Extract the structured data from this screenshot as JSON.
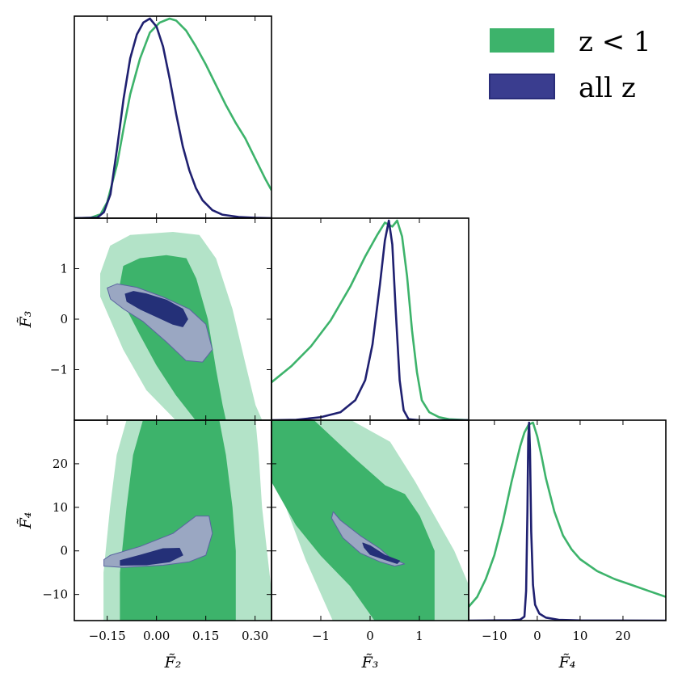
{
  "colors": {
    "green": "#3db36b",
    "green_light": "#b3e3c8",
    "navy": "#1f2070",
    "navy_fill": "#243078",
    "navy_light": "#9aa7c2",
    "axes": "#000000"
  },
  "legend": {
    "placement": "top-right",
    "items": [
      {
        "label": "z < 1",
        "color": "#3db36b"
      },
      {
        "label": "all z",
        "color": "#3a3d8f"
      }
    ]
  },
  "chart_data": {
    "type": "corner-plot",
    "parameters": [
      {
        "id": "F2",
        "label": "F̃₂",
        "range": [
          -0.25,
          0.35
        ],
        "ticks": [
          -0.15,
          0.0,
          0.15,
          0.3
        ],
        "tick_labels": [
          "−0.15",
          "0.00",
          "0.15",
          "0.30"
        ]
      },
      {
        "id": "F3",
        "label": "F̃₃",
        "range": [
          -2.0,
          2.0
        ],
        "ticks": [
          -1,
          0,
          1
        ],
        "tick_labels": [
          "−1",
          "0",
          "1"
        ]
      },
      {
        "id": "F4",
        "label": "F̃₄",
        "range": [
          -16,
          30
        ],
        "ticks": [
          -10,
          0,
          10,
          20
        ],
        "tick_labels": [
          "−10",
          "0",
          "10",
          "20"
        ]
      }
    ],
    "y_tick_labels": {
      "F3": [
        "1",
        "0",
        "−1"
      ],
      "F4": [
        "20",
        "10",
        "0",
        "−10"
      ]
    },
    "marginals": {
      "F2": {
        "green": [
          [
            -0.25,
            0
          ],
          [
            -0.2,
            0.002
          ],
          [
            -0.17,
            0.02
          ],
          [
            -0.15,
            0.08
          ],
          [
            -0.12,
            0.27
          ],
          [
            -0.1,
            0.45
          ],
          [
            -0.08,
            0.62
          ],
          [
            -0.05,
            0.8
          ],
          [
            -0.02,
            0.93
          ],
          [
            0.01,
            0.98
          ],
          [
            0.04,
            1.0
          ],
          [
            0.06,
            0.99
          ],
          [
            0.09,
            0.94
          ],
          [
            0.12,
            0.86
          ],
          [
            0.15,
            0.77
          ],
          [
            0.18,
            0.67
          ],
          [
            0.21,
            0.57
          ],
          [
            0.24,
            0.48
          ],
          [
            0.27,
            0.4
          ],
          [
            0.3,
            0.3
          ],
          [
            0.33,
            0.2
          ],
          [
            0.35,
            0.14
          ]
        ],
        "navy": [
          [
            -0.25,
            0
          ],
          [
            -0.18,
            0.003
          ],
          [
            -0.16,
            0.03
          ],
          [
            -0.14,
            0.12
          ],
          [
            -0.12,
            0.35
          ],
          [
            -0.1,
            0.6
          ],
          [
            -0.08,
            0.8
          ],
          [
            -0.06,
            0.92
          ],
          [
            -0.04,
            0.98
          ],
          [
            -0.02,
            1.0
          ],
          [
            0.0,
            0.96
          ],
          [
            0.02,
            0.86
          ],
          [
            0.04,
            0.7
          ],
          [
            0.06,
            0.52
          ],
          [
            0.08,
            0.36
          ],
          [
            0.1,
            0.24
          ],
          [
            0.12,
            0.15
          ],
          [
            0.14,
            0.09
          ],
          [
            0.17,
            0.04
          ],
          [
            0.2,
            0.018
          ],
          [
            0.25,
            0.006
          ],
          [
            0.3,
            0.002
          ],
          [
            0.35,
            0
          ]
        ]
      },
      "F3": {
        "green": [
          [
            -2.0,
            0.19
          ],
          [
            -1.6,
            0.27
          ],
          [
            -1.2,
            0.37
          ],
          [
            -0.8,
            0.5
          ],
          [
            -0.4,
            0.67
          ],
          [
            -0.1,
            0.82
          ],
          [
            0.15,
            0.93
          ],
          [
            0.3,
            0.99
          ],
          [
            0.45,
            0.97
          ],
          [
            0.55,
            1.0
          ],
          [
            0.65,
            0.92
          ],
          [
            0.75,
            0.72
          ],
          [
            0.85,
            0.45
          ],
          [
            0.95,
            0.24
          ],
          [
            1.05,
            0.1
          ],
          [
            1.2,
            0.04
          ],
          [
            1.4,
            0.015
          ],
          [
            1.6,
            0.005
          ],
          [
            2.0,
            0
          ]
        ],
        "navy": [
          [
            -2.0,
            0
          ],
          [
            -1.5,
            0.002
          ],
          [
            -1.0,
            0.015
          ],
          [
            -0.6,
            0.04
          ],
          [
            -0.3,
            0.1
          ],
          [
            -0.1,
            0.2
          ],
          [
            0.05,
            0.38
          ],
          [
            0.2,
            0.68
          ],
          [
            0.3,
            0.9
          ],
          [
            0.38,
            1.0
          ],
          [
            0.45,
            0.88
          ],
          [
            0.52,
            0.55
          ],
          [
            0.6,
            0.2
          ],
          [
            0.68,
            0.05
          ],
          [
            0.78,
            0.005
          ],
          [
            1.0,
            0
          ],
          [
            2.0,
            0
          ]
        ]
      },
      "F4": {
        "green": [
          [
            -16,
            0.07
          ],
          [
            -14,
            0.12
          ],
          [
            -12,
            0.21
          ],
          [
            -10,
            0.33
          ],
          [
            -8,
            0.5
          ],
          [
            -6,
            0.7
          ],
          [
            -4,
            0.88
          ],
          [
            -3,
            0.95
          ],
          [
            -2,
            0.99
          ],
          [
            -1,
            1.0
          ],
          [
            0,
            0.93
          ],
          [
            1,
            0.83
          ],
          [
            2,
            0.72
          ],
          [
            4,
            0.55
          ],
          [
            6,
            0.43
          ],
          [
            8,
            0.36
          ],
          [
            10,
            0.31
          ],
          [
            14,
            0.25
          ],
          [
            18,
            0.21
          ],
          [
            22,
            0.18
          ],
          [
            26,
            0.15
          ],
          [
            30,
            0.12
          ]
        ],
        "navy": [
          [
            -16,
            0
          ],
          [
            -6,
            0.002
          ],
          [
            -4,
            0.005
          ],
          [
            -3,
            0.02
          ],
          [
            -2.6,
            0.15
          ],
          [
            -2.3,
            0.55
          ],
          [
            -2.1,
            0.92
          ],
          [
            -1.9,
            1.0
          ],
          [
            -1.7,
            0.86
          ],
          [
            -1.4,
            0.45
          ],
          [
            -1.0,
            0.18
          ],
          [
            -0.5,
            0.08
          ],
          [
            0.5,
            0.035
          ],
          [
            2,
            0.015
          ],
          [
            5,
            0.004
          ],
          [
            10,
            0.001
          ],
          [
            30,
            0
          ]
        ]
      }
    },
    "contours": {
      "F2_F3": {
        "green_outer": [
          [
            -0.17,
            0.9
          ],
          [
            -0.14,
            1.45
          ],
          [
            -0.08,
            1.66
          ],
          [
            0.05,
            1.72
          ],
          [
            0.13,
            1.66
          ],
          [
            0.18,
            1.2
          ],
          [
            0.23,
            0.2
          ],
          [
            0.27,
            -0.9
          ],
          [
            0.3,
            -1.7
          ],
          [
            0.32,
            -2.0
          ],
          [
            0.06,
            -2.0
          ],
          [
            -0.03,
            -1.4
          ],
          [
            -0.1,
            -0.6
          ],
          [
            -0.14,
            0.0
          ],
          [
            -0.17,
            0.45
          ]
        ],
        "green_inner": [
          [
            -0.11,
            0.7
          ],
          [
            -0.1,
            1.05
          ],
          [
            -0.05,
            1.2
          ],
          [
            0.03,
            1.26
          ],
          [
            0.09,
            1.2
          ],
          [
            0.12,
            0.8
          ],
          [
            0.155,
            0.0
          ],
          [
            0.18,
            -1.0
          ],
          [
            0.2,
            -1.7
          ],
          [
            0.21,
            -2.0
          ],
          [
            0.12,
            -2.0
          ],
          [
            0.06,
            -1.5
          ],
          [
            0.0,
            -0.9
          ],
          [
            -0.05,
            -0.3
          ],
          [
            -0.09,
            0.2
          ]
        ],
        "navy_outer": [
          [
            -0.15,
            0.62
          ],
          [
            -0.12,
            0.7
          ],
          [
            -0.06,
            0.63
          ],
          [
            0.02,
            0.44
          ],
          [
            0.1,
            0.2
          ],
          [
            0.15,
            -0.1
          ],
          [
            0.17,
            -0.6
          ],
          [
            0.14,
            -0.85
          ],
          [
            0.09,
            -0.82
          ],
          [
            0.03,
            -0.45
          ],
          [
            -0.04,
            -0.05
          ],
          [
            -0.1,
            0.2
          ],
          [
            -0.14,
            0.4
          ]
        ],
        "navy_inner": [
          [
            -0.095,
            0.5
          ],
          [
            -0.07,
            0.55
          ],
          [
            -0.03,
            0.5
          ],
          [
            0.03,
            0.38
          ],
          [
            0.08,
            0.2
          ],
          [
            0.095,
            0.0
          ],
          [
            0.08,
            -0.15
          ],
          [
            0.05,
            -0.1
          ],
          [
            0.0,
            0.05
          ],
          [
            -0.05,
            0.2
          ],
          [
            -0.09,
            0.35
          ]
        ]
      },
      "F2_F4": {
        "green_outer": [
          [
            -0.16,
            -16
          ],
          [
            -0.16,
            -5
          ],
          [
            -0.14,
            10
          ],
          [
            -0.12,
            22
          ],
          [
            -0.09,
            30
          ],
          [
            0.3,
            30
          ],
          [
            0.31,
            22
          ],
          [
            0.32,
            10
          ],
          [
            0.335,
            0
          ],
          [
            0.35,
            -10
          ],
          [
            0.35,
            -16
          ]
        ],
        "green_inner": [
          [
            -0.11,
            -16
          ],
          [
            -0.11,
            -5
          ],
          [
            -0.09,
            10
          ],
          [
            -0.07,
            22
          ],
          [
            -0.04,
            30
          ],
          [
            0.19,
            30
          ],
          [
            0.21,
            22
          ],
          [
            0.23,
            10
          ],
          [
            0.24,
            0
          ],
          [
            0.24,
            -10
          ],
          [
            0.24,
            -16
          ]
        ],
        "navy_outer": [
          [
            -0.16,
            -2
          ],
          [
            -0.14,
            -1
          ],
          [
            -0.05,
            1
          ],
          [
            0.05,
            4
          ],
          [
            0.12,
            8
          ],
          [
            0.16,
            8
          ],
          [
            0.17,
            4
          ],
          [
            0.15,
            -1
          ],
          [
            0.1,
            -2.5
          ],
          [
            0.02,
            -3.3
          ],
          [
            -0.1,
            -3.8
          ],
          [
            -0.16,
            -3.5
          ]
        ],
        "navy_inner": [
          [
            -0.11,
            -2.2
          ],
          [
            -0.05,
            -1
          ],
          [
            0.02,
            0.5
          ],
          [
            0.07,
            0.6
          ],
          [
            0.08,
            -1.0
          ],
          [
            0.04,
            -2.5
          ],
          [
            -0.03,
            -3.2
          ],
          [
            -0.11,
            -3.3
          ]
        ]
      },
      "F3_F4": {
        "green_outer": [
          [
            -2.0,
            30
          ],
          [
            -0.4,
            30
          ],
          [
            0.4,
            25
          ],
          [
            0.9,
            16
          ],
          [
            1.3,
            8
          ],
          [
            1.7,
            0
          ],
          [
            2.0,
            -8
          ],
          [
            2.0,
            -16
          ],
          [
            -0.75,
            -16
          ],
          [
            -1.3,
            -2
          ],
          [
            -1.7,
            10
          ],
          [
            -2.0,
            20
          ]
        ],
        "green_inner": [
          [
            -2.0,
            30
          ],
          [
            -1.15,
            30
          ],
          [
            -0.3,
            21
          ],
          [
            0.3,
            15
          ],
          [
            0.7,
            13
          ],
          [
            1.0,
            8
          ],
          [
            1.3,
            0
          ],
          [
            1.3,
            -16
          ],
          [
            0.1,
            -16
          ],
          [
            -0.4,
            -8
          ],
          [
            -1.0,
            -1
          ],
          [
            -1.5,
            6
          ],
          [
            -2.0,
            16
          ]
        ],
        "navy_outer": [
          [
            -0.75,
            9
          ],
          [
            -0.6,
            7
          ],
          [
            -0.2,
            3.5
          ],
          [
            0.2,
            0.5
          ],
          [
            0.4,
            -1.5
          ],
          [
            0.6,
            -2.5
          ],
          [
            0.7,
            -3
          ],
          [
            0.5,
            -3.5
          ],
          [
            0.2,
            -2.5
          ],
          [
            -0.2,
            -0.5
          ],
          [
            -0.55,
            3
          ],
          [
            -0.78,
            7.5
          ]
        ],
        "navy_inner": [
          [
            -0.15,
            1.8
          ],
          [
            0.0,
            1.2
          ],
          [
            0.3,
            -1
          ],
          [
            0.6,
            -2.3
          ],
          [
            0.55,
            -2.9
          ],
          [
            0.3,
            -2.0
          ],
          [
            0.0,
            -0.8
          ],
          [
            -0.12,
            0.8
          ]
        ]
      }
    }
  }
}
